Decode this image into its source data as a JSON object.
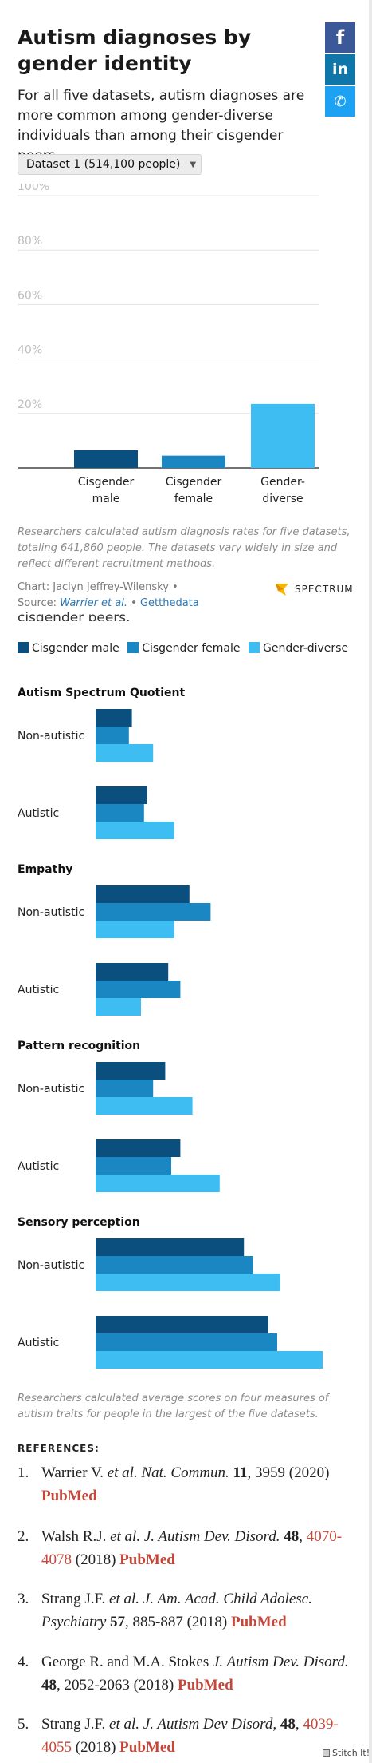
{
  "header": {
    "title": "Autism diagnoses by gender identity",
    "subtitle": "For all five datasets, autism diagnoses are more common among gender-diverse individuals than among their cisgender peers."
  },
  "social": {
    "facebook_glyph": "f",
    "linkedin_glyph": "in",
    "twitter_glyph": "✆"
  },
  "dataset_select": {
    "selected": "Dataset 1 (514,100 people)"
  },
  "chart_data": [
    {
      "type": "bar",
      "categories": [
        "Cisgender male",
        "Cisgender female",
        "Gender-diverse"
      ],
      "category_label_lines": [
        [
          "Cisgender",
          "male"
        ],
        [
          "Cisgender",
          "female"
        ],
        [
          "Gender-",
          "diverse"
        ]
      ],
      "values": [
        6.5,
        4.5,
        23.5
      ],
      "colors": [
        "#0b4f7e",
        "#1a86c2",
        "#3ebdf2"
      ],
      "ylim": [
        0,
        100
      ],
      "y_ticks": [
        0,
        20,
        40,
        60,
        80,
        100
      ],
      "y_tick_labels": [
        "20%",
        "40%",
        "60%",
        "80%",
        "100%"
      ],
      "grid": true,
      "title": "",
      "xlabel": "",
      "ylabel": ""
    },
    {
      "type": "bar",
      "orientation": "horizontal",
      "series": [
        {
          "name": "Cisgender male",
          "color": "#0b4f7e"
        },
        {
          "name": "Cisgender female",
          "color": "#1a86c2"
        },
        {
          "name": "Gender-diverse",
          "color": "#3ebdf2"
        }
      ],
      "panels": [
        {
          "title": "Autism Spectrum Quotient",
          "groups": [
            {
              "label": "Non-autistic",
              "values": [
                12,
                11,
                19
              ]
            },
            {
              "label": "Autistic",
              "values": [
                17,
                16,
                26
              ]
            }
          ]
        },
        {
          "title": "Empathy",
          "groups": [
            {
              "label": "Non-autistic",
              "values": [
                31,
                38,
                26
              ]
            },
            {
              "label": "Autistic",
              "values": [
                24,
                28,
                15
              ]
            }
          ]
        },
        {
          "title": "Pattern recognition",
          "groups": [
            {
              "label": "Non-autistic",
              "values": [
                23,
                19,
                32
              ]
            },
            {
              "label": "Autistic",
              "values": [
                28,
                25,
                41
              ]
            }
          ]
        },
        {
          "title": "Sensory perception",
          "groups": [
            {
              "label": "Non-autistic",
              "values": [
                49,
                52,
                61
              ]
            },
            {
              "label": "Autistic",
              "values": [
                57,
                60,
                75
              ]
            }
          ]
        }
      ],
      "xlim": [
        0,
        75
      ],
      "legend_position": "top",
      "grid": false,
      "title": "",
      "xlabel": "",
      "ylabel": ""
    }
  ],
  "chart1_note": "Researchers calculated autism diagnosis rates for five datasets, totaling 641,860 people. The datasets vary widely in size and reflect different recruitment methods.",
  "credit": {
    "chart_by": "Chart: Jaclyn Jeffrey-Wilensky •",
    "source_label": "Source:",
    "source_authors": "Warrier et al.",
    "separator": "•",
    "source_link": "Getthedata"
  },
  "brand": {
    "name": "SPECTRUM",
    "color": "#f7b500"
  },
  "cut_text": "cisgender peers.",
  "chart2_note": "Researchers calculated average scores on four measures of autism traits for people in the largest of the five datasets.",
  "references": {
    "title": "REFERENCES:",
    "items": [
      {
        "num": "1.",
        "authors": "Warrier V.",
        "etal": " et al.",
        "journal": " Nat. Commun.",
        "vol": " 11",
        "pages": ", 3959",
        "year": " (2020) ",
        "pubmed": "PubMed"
      },
      {
        "num": "2.",
        "authors": "Walsh R.J.",
        "etal": " et al.",
        "journal": " J. Autism Dev. Disord.",
        "vol": " 48",
        "pages_link": "4070-4078",
        "year": " (2018) ",
        "pubmed": "PubMed"
      },
      {
        "num": "3.",
        "authors": "Strang J.F.",
        "etal": " et al.",
        "journal": " J. Am. Acad. Child Adolesc. Psychiatry",
        "vol": " 57",
        "pages": ", 885-887",
        "year": " (2018) ",
        "pubmed": "PubMed"
      },
      {
        "num": "4.",
        "authors": "George R. and M.A. Stokes",
        "etal": "",
        "journal": " J. Autism Dev. Disord.",
        "vol": " 48",
        "pages": ", 2052-2063",
        "year": " (2018) ",
        "pubmed": "PubMed"
      },
      {
        "num": "5.",
        "authors": "Strang J.F.",
        "etal": " et al.",
        "journal": " J. Autism Dev Disord,",
        "vol": " 48",
        "pages_link": "4039-4055",
        "year": " (2018) ",
        "pubmed": "PubMed"
      }
    ]
  },
  "stitch": {
    "label": "Stitch It!"
  }
}
